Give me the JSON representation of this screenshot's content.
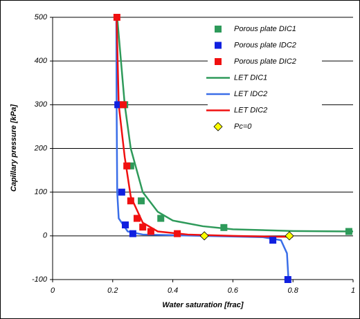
{
  "chart_data": {
    "type": "scatter",
    "x_label": "Water saturation [frac]",
    "y_label": "Capillary pressure [kPa]",
    "xlim": [
      0,
      1
    ],
    "xticks": [
      0,
      0.2,
      0.4,
      0.6,
      0.8,
      1
    ],
    "ylim": [
      -100,
      500
    ],
    "yticks": [
      -100,
      0,
      100,
      200,
      300,
      400,
      500
    ],
    "grid": true,
    "legend": "top-right",
    "series": [
      {
        "name": "Porous plate DIC1",
        "color": "#2e9a5a",
        "marker": "square",
        "x": [
          0.24,
          0.26,
          0.295,
          0.36,
          0.57,
          0.986
        ],
        "values": [
          300,
          160,
          80,
          40,
          19,
          10
        ]
      },
      {
        "name": "Porous plate IDC2",
        "color": "#1020e0",
        "marker": "square",
        "x": [
          0.217,
          0.23,
          0.242,
          0.267,
          0.733,
          0.783
        ],
        "values": [
          300,
          100,
          25,
          5,
          -10,
          -100
        ]
      },
      {
        "name": "Porous plate DIC2",
        "color": "#f01010",
        "marker": "square",
        "x": [
          0.214,
          0.235,
          0.247,
          0.26,
          0.281,
          0.3,
          0.327,
          0.415
        ],
        "values": [
          500,
          300,
          160,
          80,
          40,
          20,
          10,
          5
        ]
      },
      {
        "name": "LET DIC1",
        "color": "#2e9a5a",
        "marker": "line",
        "x": [
          0.215,
          0.24,
          0.26,
          0.3,
          0.35,
          0.4,
          0.5,
          0.6,
          0.8,
          1
        ],
        "values": [
          500,
          300,
          200,
          100,
          55,
          35,
          22,
          15,
          11,
          10
        ]
      },
      {
        "name": "LET IDC2",
        "color": "#3a6ee8",
        "marker": "line",
        "x": [
          0.212,
          0.213,
          0.215,
          0.22,
          0.25,
          0.3,
          0.5,
          0.7,
          0.76,
          0.78,
          0.785
        ],
        "values": [
          500,
          300,
          100,
          40,
          10,
          3,
          0,
          -3,
          -10,
          -40,
          -100
        ]
      },
      {
        "name": "LET DIC2",
        "color": "#f01010",
        "marker": "line",
        "x": [
          0.213,
          0.22,
          0.24,
          0.26,
          0.3,
          0.35,
          0.45,
          0.6,
          0.75,
          0.8
        ],
        "values": [
          500,
          300,
          180,
          90,
          30,
          10,
          3,
          0,
          -2,
          -2
        ]
      },
      {
        "name": "Pc=0",
        "color": "#ffff00",
        "marker": "diamond",
        "x": [
          0.505,
          0.788
        ],
        "values": [
          0,
          0
        ]
      }
    ]
  }
}
